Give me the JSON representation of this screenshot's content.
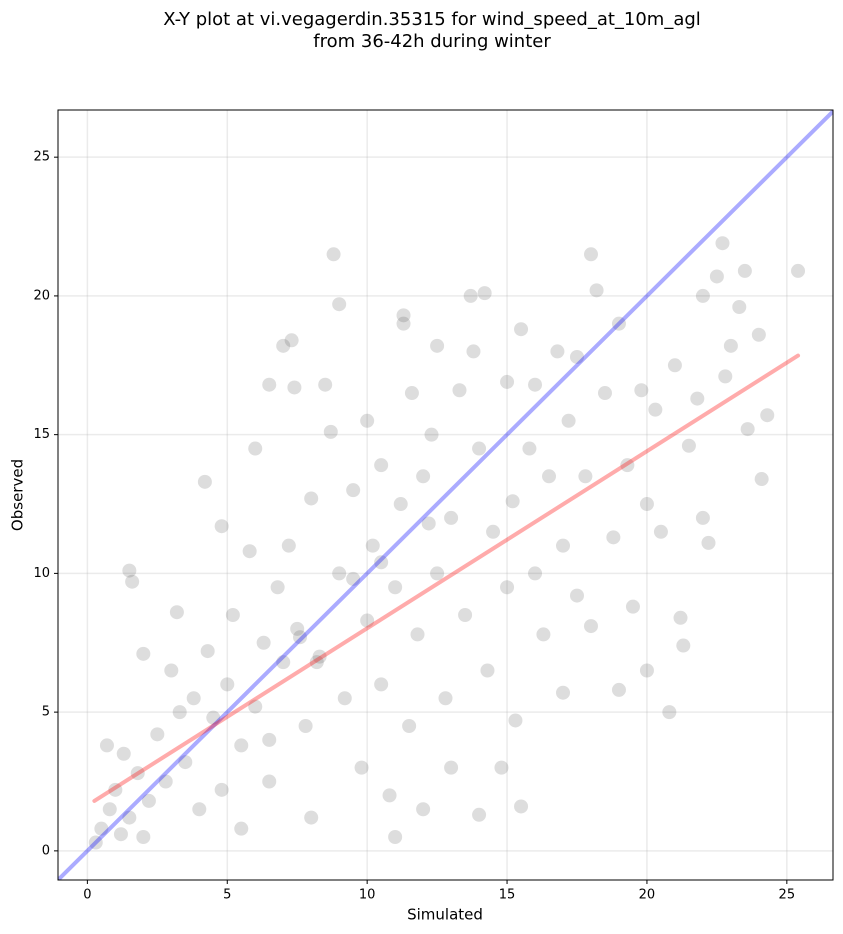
{
  "chart_data": {
    "type": "scatter",
    "title": [
      "X-Y plot at vi.vegagerdin.35315 for wind_speed_at_10m_agl",
      "from 36-42h during winter"
    ],
    "x_label": "Simulated",
    "y_label": "Observed",
    "xlim": [
      -1.05,
      26.65
    ],
    "ylim": [
      -1.05,
      26.7
    ],
    "xticks": [
      0,
      5,
      10,
      15,
      20,
      25
    ],
    "yticks": [
      0,
      5,
      10,
      15,
      20,
      25
    ],
    "grid": true,
    "color": "#404040",
    "x": [
      0.5,
      0.8,
      1,
      1.2,
      1.5,
      1.3,
      0.7,
      1.8,
      2,
      2.2,
      2.5,
      2.8,
      1.5,
      1.6,
      3,
      3.2,
      3.5,
      3.8,
      4,
      4.2,
      4.3,
      4.5,
      4.8,
      4.8,
      5,
      5.2,
      5.5,
      5.5,
      5.8,
      6,
      6,
      6.3,
      6.5,
      6.5,
      6.8,
      7,
      7,
      7.2,
      7.3,
      7.4,
      7.5,
      7.8,
      8,
      8,
      8.3,
      8.5,
      8.7,
      8.8,
      9,
      9,
      9.2,
      9.5,
      9.8,
      10,
      10,
      10.2,
      10.5,
      10.5,
      10.8,
      11,
      11,
      11.2,
      11.3,
      11.3,
      11.5,
      11.6,
      11.8,
      12,
      12,
      12.3,
      12.5,
      12.5,
      12.8,
      13,
      13,
      13.3,
      13.5,
      13.7,
      13.8,
      14,
      14,
      14.2,
      14.3,
      14.5,
      14.8,
      15,
      15,
      15.2,
      15.3,
      15.5,
      15.5,
      15.8,
      16,
      16,
      16.3,
      16.5,
      16.8,
      17,
      17,
      17.2,
      17.5,
      17.5,
      17.8,
      18,
      18,
      18.2,
      18.5,
      18.8,
      19,
      19,
      19.3,
      19.5,
      19.8,
      20,
      20,
      20.3,
      20.5,
      20.8,
      21,
      21.2,
      21.3,
      21.5,
      21.8,
      22,
      22,
      22.2,
      22.5,
      22.7,
      22.8,
      23,
      23.3,
      23.5,
      23.6,
      24,
      24.1,
      24.3,
      25.4,
      0.3,
      2,
      3.3,
      6.5,
      7.6,
      8.2,
      9.5,
      10.5,
      12.2
    ],
    "y": [
      0.8,
      1.5,
      2.2,
      0.6,
      1.2,
      3.5,
      3.8,
      2.8,
      0.5,
      1.8,
      4.2,
      2.5,
      10.1,
      9.7,
      6.5,
      8.6,
      3.2,
      5.5,
      1.5,
      13.3,
      7.2,
      4.8,
      2.2,
      11.7,
      6,
      8.5,
      3.8,
      0.8,
      10.8,
      5.2,
      14.5,
      7.5,
      16.8,
      2.5,
      9.5,
      18.2,
      6.8,
      11,
      18.4,
      16.7,
      8,
      4.5,
      12.7,
      1.2,
      7,
      16.8,
      15.1,
      21.5,
      19.7,
      10,
      5.5,
      13,
      3,
      8.3,
      15.5,
      11,
      13.9,
      6,
      2,
      9.5,
      0.5,
      12.5,
      19.3,
      19,
      4.5,
      16.5,
      7.8,
      13.5,
      1.5,
      15,
      10,
      18.2,
      5.5,
      12,
      3,
      16.6,
      8.5,
      20,
      18,
      14.5,
      1.3,
      20.1,
      6.5,
      11.5,
      3,
      16.9,
      9.5,
      12.6,
      4.7,
      18.8,
      1.6,
      14.5,
      10,
      16.8,
      7.8,
      13.5,
      18,
      5.7,
      11,
      15.5,
      9.2,
      17.8,
      13.5,
      21.5,
      8.1,
      20.2,
      16.5,
      11.3,
      5.8,
      19,
      13.9,
      8.8,
      16.6,
      6.5,
      12.5,
      15.9,
      11.5,
      5,
      17.5,
      8.4,
      7.4,
      14.6,
      16.3,
      20,
      12,
      11.1,
      20.7,
      21.9,
      17.1,
      18.2,
      19.6,
      20.9,
      15.2,
      18.6,
      13.4,
      15.7,
      20.9,
      0.3,
      7.1,
      5,
      4,
      7.7,
      6.8,
      9.8,
      10.4,
      11.8
    ],
    "lines": [
      {
        "color": "#0000ff",
        "x": [
          -1.05,
          26.65
        ],
        "y": [
          -1.05,
          26.65
        ]
      },
      {
        "color": "#ff0000",
        "x": [
          0.25,
          25.4
        ],
        "y": [
          1.8,
          17.85
        ]
      }
    ]
  }
}
